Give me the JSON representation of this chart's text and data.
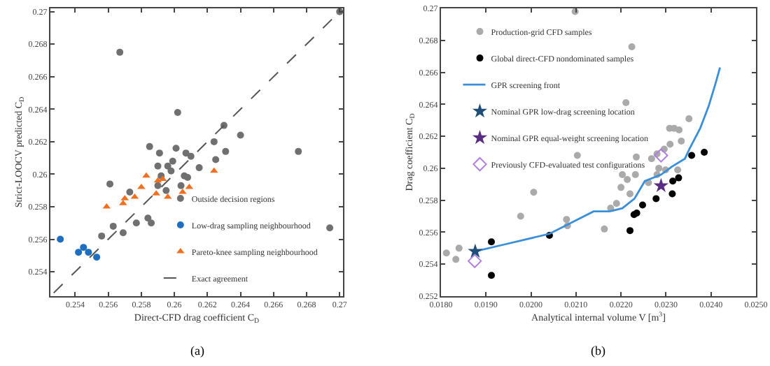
{
  "chart_data": [
    {
      "type": "scatter",
      "xlabel": "Direct-CFD drag coefficient C$_{D}$",
      "ylabel": "Strict-LOOCV predicted C$_{D}$",
      "annotations": [
        "(a)"
      ],
      "xlim": [
        0.2525,
        0.2702
      ],
      "ylim": [
        0.2525,
        0.2702
      ],
      "xticks": [
        0.254,
        0.256,
        0.258,
        0.26,
        0.262,
        0.264,
        0.266,
        0.268,
        0.27
      ],
      "yticks": [
        0.254,
        0.256,
        0.258,
        0.26,
        0.262,
        0.264,
        0.266,
        0.268,
        0.27
      ],
      "grid": false,
      "legend": "bottom right",
      "series": [
        {
          "name": "Outside decision regions",
          "color": "#707070",
          "marker": "circle",
          "x": [
            0.2567,
            0.2602,
            0.263,
            0.264,
            0.2585,
            0.2591,
            0.2601,
            0.2624,
            0.2631,
            0.2675,
            0.2607,
            0.261,
            0.2599,
            0.2625,
            0.259,
            0.2596,
            0.2615,
            0.2592,
            0.2598,
            0.2606,
            0.2608,
            0.2561,
            0.2573,
            0.259,
            0.2595,
            0.2604,
            0.2584,
            0.2577,
            0.2586,
            0.2563,
            0.2569,
            0.2556,
            0.2694,
            0.27
          ],
          "values": [
            0.2675,
            0.2638,
            0.263,
            0.2624,
            0.2617,
            0.2613,
            0.2616,
            0.262,
            0.2614,
            0.2614,
            0.2613,
            0.2611,
            0.2608,
            0.2609,
            0.2605,
            0.2605,
            0.2604,
            0.2599,
            0.2602,
            0.2599,
            0.2598,
            0.2594,
            0.2589,
            0.2593,
            0.259,
            0.2593,
            0.2573,
            0.257,
            0.257,
            0.2568,
            0.2564,
            0.2562,
            0.2567,
            0.27
          ]
        },
        {
          "name": "Low-drag sampling neighbourhood",
          "color": "#1f6fc0",
          "marker": "circle",
          "x": [
            0.2531,
            0.2542,
            0.2545,
            0.2548,
            0.2553
          ],
          "values": [
            0.256,
            0.2552,
            0.2555,
            0.2552,
            0.2549
          ]
        },
        {
          "name": "Pareto-knee sampling neighbourhood",
          "color": "#f07020",
          "marker": "triangle",
          "x": [
            0.2559,
            0.257,
            0.2569,
            0.2576,
            0.258,
            0.2583,
            0.259,
            0.2593,
            0.2589,
            0.2596,
            0.2605,
            0.2609,
            0.2624
          ],
          "values": [
            0.258,
            0.2585,
            0.2582,
            0.2586,
            0.2592,
            0.2599,
            0.2596,
            0.2597,
            0.2588,
            0.2586,
            0.2589,
            0.2592,
            0.2602
          ]
        },
        {
          "name": "Exact agreement",
          "type": "line",
          "color": "#555555",
          "line_style": "dashed",
          "marker": "none",
          "x": [
            0.2527,
            0.27
          ],
          "values": [
            0.2527,
            0.27
          ]
        }
      ]
    },
    {
      "type": "scatter",
      "xlabel": "Analytical internal volume V [m$^{3}$]",
      "ylabel": "Drag coefficient C$_{D}$",
      "annotations": [
        "(b)"
      ],
      "xlim": [
        0.018,
        0.025
      ],
      "ylim": [
        0.252,
        0.27
      ],
      "xticks": [
        {
          "value": 0.018,
          "label": "0.0180"
        },
        {
          "value": 0.019,
          "label": "0.0190"
        },
        {
          "value": 0.02,
          "label": "0.0200"
        },
        {
          "value": 0.021,
          "label": "0.0210"
        },
        {
          "value": 0.022,
          "label": "0.0220"
        },
        {
          "value": 0.023,
          "label": "0.0230"
        },
        {
          "value": 0.024,
          "label": "0.0240"
        },
        {
          "value": 0.025,
          "label": "0.0250"
        }
      ],
      "yticks": [
        0.252,
        0.254,
        0.256,
        0.258,
        0.26,
        0.262,
        0.264,
        0.266,
        0.268,
        0.27
      ],
      "grid": false,
      "legend": "top left",
      "series": [
        {
          "name": "Production-grid CFD samples",
          "color": "#aaaaaa",
          "marker": "circle",
          "x": [
            0.02098,
            0.02224,
            0.02211,
            0.02351,
            0.02308,
            0.02318,
            0.02329,
            0.02334,
            0.02309,
            0.02296,
            0.0228,
            0.02103,
            0.02234,
            0.02268,
            0.02284,
            0.02203,
            0.02232,
            0.02214,
            0.02261,
            0.0228,
            0.02299,
            0.02326,
            0.022,
            0.0222,
            0.02006,
            0.0219,
            0.02177,
            0.01977,
            0.02079,
            0.02081,
            0.02163,
            0.01812,
            0.0184,
            0.01833
          ],
          "values": [
            0.2698,
            0.2676,
            0.2641,
            0.2631,
            0.2625,
            0.2625,
            0.2624,
            0.2617,
            0.2615,
            0.2612,
            0.2609,
            0.2608,
            0.2607,
            0.2606,
            0.26,
            0.2596,
            0.2596,
            0.2593,
            0.2591,
            0.2596,
            0.2599,
            0.2599,
            0.2588,
            0.2584,
            0.2585,
            0.2578,
            0.2575,
            0.257,
            0.2568,
            0.2564,
            0.2562,
            0.2547,
            0.255,
            0.2543
          ]
        },
        {
          "name": "Global direct-CFD nondominated samples",
          "color": "#000000",
          "marker": "circle",
          "x": [
            0.02357,
            0.02385,
            0.01912,
            0.01912,
            0.02041,
            0.0222,
            0.02229,
            0.02235,
            0.02248,
            0.02278,
            0.02315,
            0.02328,
            0.02314
          ],
          "values": [
            0.2608,
            0.261,
            0.2554,
            0.2533,
            0.2558,
            0.2561,
            0.2571,
            0.2572,
            0.2577,
            0.2581,
            0.2592,
            0.2594,
            0.2584
          ]
        },
        {
          "name": "GPR screening front",
          "type": "line",
          "color": "#3a8fd8",
          "line_style": "solid",
          "marker": "none",
          "x": [
            0.01876,
            0.01936,
            0.02041,
            0.02139,
            0.02175,
            0.02203,
            0.0223,
            0.02253,
            0.02289,
            0.02313,
            0.02342,
            0.02352,
            0.02376,
            0.02395,
            0.0241,
            0.0242
          ],
          "values": [
            0.2548,
            0.2552,
            0.2559,
            0.2573,
            0.2573,
            0.2575,
            0.2581,
            0.2592,
            0.2596,
            0.2601,
            0.2606,
            0.2612,
            0.2625,
            0.2639,
            0.2653,
            0.2663
          ]
        },
        {
          "name": "Nominal GPR low-drag screening location",
          "color": "#1f4e79",
          "marker": "star",
          "x": [
            0.01876
          ],
          "values": [
            0.2548
          ]
        },
        {
          "name": "Nominal GPR equal-weight screening location",
          "color": "#5b2c83",
          "marker": "star",
          "x": [
            0.02289
          ],
          "values": [
            0.2589
          ]
        },
        {
          "name": "Previously CFD-evaluated test configurations",
          "color": "#b07fe0",
          "marker": "diamond",
          "x": [
            0.01875,
            0.02289
          ],
          "values": [
            0.2542,
            0.2608
          ]
        }
      ]
    }
  ]
}
